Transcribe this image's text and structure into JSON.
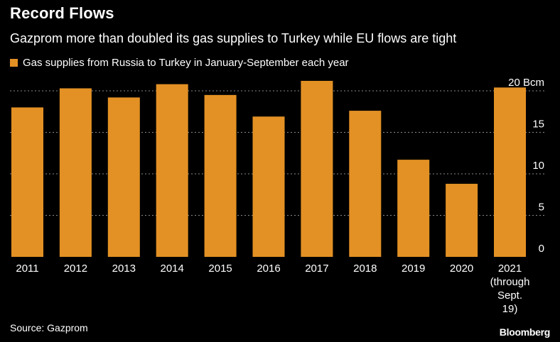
{
  "title": "Record Flows",
  "subtitle": "Gazprom more than doubled its gas supplies to Turkey while EU flows are tight",
  "source": "Source: Gazprom",
  "brand": "Bloomberg",
  "colors": {
    "background": "#000000",
    "bar": "#e39124",
    "text": "#ffffff",
    "grid": "#8a8a8a"
  },
  "chart_data": {
    "type": "bar",
    "categories": [
      "2011",
      "2012",
      "2013",
      "2014",
      "2015",
      "2016",
      "2017",
      "2018",
      "2019",
      "2020",
      "2021 (through Sept. 19)"
    ],
    "category_lines": [
      [
        "2011"
      ],
      [
        "2012"
      ],
      [
        "2013"
      ],
      [
        "2014"
      ],
      [
        "2015"
      ],
      [
        "2016"
      ],
      [
        "2017"
      ],
      [
        "2018"
      ],
      [
        "2019"
      ],
      [
        "2020"
      ],
      [
        "2021",
        "(through",
        "Sept.",
        "19)"
      ]
    ],
    "series": [
      {
        "name": "Gas supplies from Russia to Turkey in January-September each year",
        "values": [
          18.0,
          20.3,
          19.2,
          20.8,
          19.5,
          16.9,
          21.2,
          17.6,
          11.7,
          8.8,
          20.4
        ]
      }
    ],
    "ylim": [
      0,
      20
    ],
    "yticks": [
      0,
      5,
      10,
      15,
      20
    ],
    "ytick_labels": [
      "0",
      "5",
      "10",
      "15",
      "20  Bcm"
    ],
    "y_axis_side": "right",
    "grid": "horizontal dotted",
    "legend_position": "top-left"
  }
}
